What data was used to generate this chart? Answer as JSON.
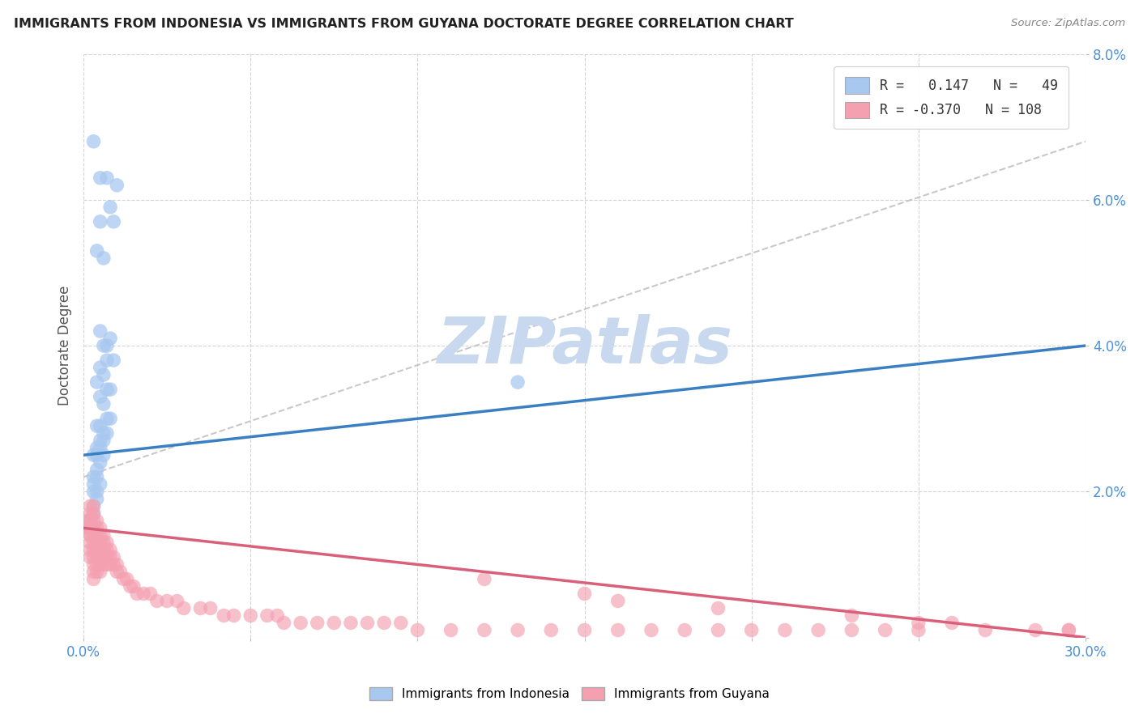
{
  "title": "IMMIGRANTS FROM INDONESIA VS IMMIGRANTS FROM GUYANA DOCTORATE DEGREE CORRELATION CHART",
  "source": "Source: ZipAtlas.com",
  "ylabel": "Doctorate Degree",
  "xlim": [
    0.0,
    0.3
  ],
  "ylim": [
    0.0,
    0.08
  ],
  "xticks": [
    0.0,
    0.05,
    0.1,
    0.15,
    0.2,
    0.25,
    0.3
  ],
  "xticklabels_ends": [
    "0.0%",
    "30.0%"
  ],
  "yticks": [
    0.0,
    0.02,
    0.04,
    0.06,
    0.08
  ],
  "yticklabels": [
    "",
    "2.0%",
    "4.0%",
    "6.0%",
    "8.0%"
  ],
  "color_indonesia": "#a8c8f0",
  "color_guyana": "#f4a0b0",
  "trend_color_indonesia": "#3a7fc1",
  "trend_color_guyana": "#d9607a",
  "dashed_line_color": "#bbbbbb",
  "watermark_color": "#c8d8ee",
  "background_color": "#ffffff",
  "grid_color": "#d0d0d0",
  "title_color": "#222222",
  "label_color": "#4a90d9",
  "ylabel_color": "#555555",
  "indonesia_x": [
    0.003,
    0.007,
    0.01,
    0.008,
    0.005,
    0.009,
    0.004,
    0.006,
    0.005,
    0.008,
    0.007,
    0.006,
    0.009,
    0.007,
    0.005,
    0.006,
    0.004,
    0.007,
    0.008,
    0.005,
    0.006,
    0.008,
    0.007,
    0.005,
    0.004,
    0.006,
    0.007,
    0.005,
    0.006,
    0.004,
    0.005,
    0.006,
    0.003,
    0.004,
    0.005,
    0.004,
    0.003,
    0.004,
    0.005,
    0.003,
    0.004,
    0.003,
    0.004,
    0.003,
    0.003,
    0.002,
    0.003,
    0.13,
    0.005
  ],
  "indonesia_y": [
    0.068,
    0.063,
    0.062,
    0.059,
    0.057,
    0.057,
    0.053,
    0.052,
    0.042,
    0.041,
    0.04,
    0.04,
    0.038,
    0.038,
    0.037,
    0.036,
    0.035,
    0.034,
    0.034,
    0.033,
    0.032,
    0.03,
    0.03,
    0.029,
    0.029,
    0.028,
    0.028,
    0.027,
    0.027,
    0.026,
    0.026,
    0.025,
    0.025,
    0.025,
    0.024,
    0.023,
    0.022,
    0.022,
    0.021,
    0.021,
    0.02,
    0.02,
    0.019,
    0.018,
    0.017,
    0.016,
    0.015,
    0.035,
    0.063
  ],
  "guyana_x": [
    0.001,
    0.001,
    0.002,
    0.002,
    0.002,
    0.002,
    0.002,
    0.002,
    0.002,
    0.002,
    0.002,
    0.002,
    0.003,
    0.003,
    0.003,
    0.003,
    0.003,
    0.003,
    0.003,
    0.003,
    0.003,
    0.003,
    0.003,
    0.004,
    0.004,
    0.004,
    0.004,
    0.004,
    0.004,
    0.004,
    0.004,
    0.005,
    0.005,
    0.005,
    0.005,
    0.005,
    0.005,
    0.005,
    0.006,
    0.006,
    0.006,
    0.006,
    0.006,
    0.007,
    0.007,
    0.007,
    0.007,
    0.008,
    0.008,
    0.008,
    0.009,
    0.009,
    0.01,
    0.01,
    0.011,
    0.012,
    0.013,
    0.014,
    0.015,
    0.016,
    0.018,
    0.02,
    0.022,
    0.025,
    0.028,
    0.03,
    0.035,
    0.038,
    0.042,
    0.045,
    0.05,
    0.055,
    0.058,
    0.06,
    0.065,
    0.07,
    0.075,
    0.08,
    0.085,
    0.09,
    0.095,
    0.1,
    0.11,
    0.12,
    0.13,
    0.14,
    0.15,
    0.16,
    0.17,
    0.18,
    0.19,
    0.2,
    0.21,
    0.22,
    0.23,
    0.24,
    0.25,
    0.27,
    0.285,
    0.295,
    0.12,
    0.15,
    0.16,
    0.19,
    0.23,
    0.25,
    0.26,
    0.295
  ],
  "guyana_y": [
    0.016,
    0.015,
    0.018,
    0.017,
    0.016,
    0.015,
    0.014,
    0.013,
    0.012,
    0.011,
    0.015,
    0.014,
    0.018,
    0.017,
    0.016,
    0.015,
    0.014,
    0.013,
    0.012,
    0.011,
    0.01,
    0.009,
    0.008,
    0.016,
    0.015,
    0.014,
    0.013,
    0.012,
    0.011,
    0.01,
    0.009,
    0.015,
    0.014,
    0.013,
    0.012,
    0.011,
    0.01,
    0.009,
    0.014,
    0.013,
    0.012,
    0.011,
    0.01,
    0.013,
    0.012,
    0.011,
    0.01,
    0.012,
    0.011,
    0.01,
    0.011,
    0.01,
    0.01,
    0.009,
    0.009,
    0.008,
    0.008,
    0.007,
    0.007,
    0.006,
    0.006,
    0.006,
    0.005,
    0.005,
    0.005,
    0.004,
    0.004,
    0.004,
    0.003,
    0.003,
    0.003,
    0.003,
    0.003,
    0.002,
    0.002,
    0.002,
    0.002,
    0.002,
    0.002,
    0.002,
    0.002,
    0.001,
    0.001,
    0.001,
    0.001,
    0.001,
    0.001,
    0.001,
    0.001,
    0.001,
    0.001,
    0.001,
    0.001,
    0.001,
    0.001,
    0.001,
    0.001,
    0.001,
    0.001,
    0.001,
    0.008,
    0.006,
    0.005,
    0.004,
    0.003,
    0.002,
    0.002,
    0.001
  ]
}
